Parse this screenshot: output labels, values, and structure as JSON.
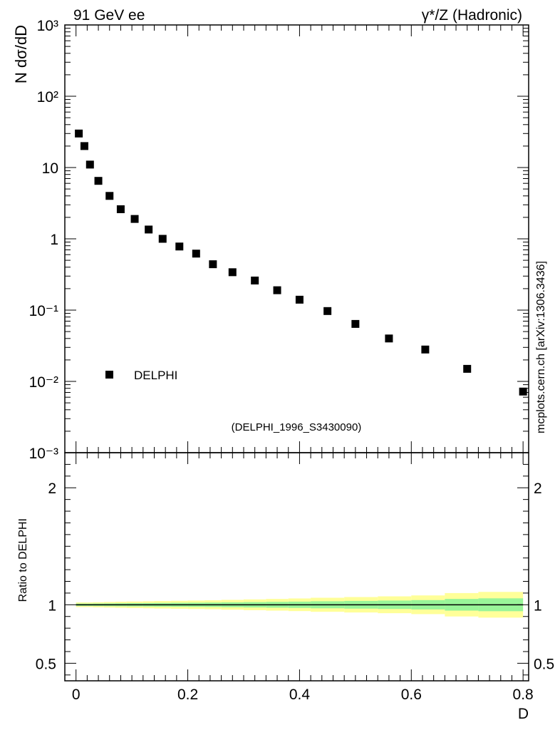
{
  "header": {
    "left": "91 GeV ee",
    "right": "γ*/Z (Hadronic)"
  },
  "side_label": "mcplots.cern.ch [arXiv:1306.3436]",
  "chart_data": [
    {
      "type": "scatter",
      "panel": "main",
      "ylabel": "N dσ/dD",
      "xlabel": "",
      "yscale": "log",
      "xlim": [
        -0.02,
        0.81
      ],
      "ylim": [
        0.001,
        1000
      ],
      "ytick_labels": [
        "10³",
        "10²",
        "10",
        "1",
        "10⁻¹",
        "10⁻²",
        "10⁻³"
      ],
      "legend": {
        "position": "bottom-left",
        "entries": [
          "DELPHI"
        ]
      },
      "annotation": "(DELPHI_1996_S3430090)",
      "series": [
        {
          "name": "DELPHI",
          "marker": "square",
          "color": "#000000",
          "x": [
            0.005,
            0.015,
            0.025,
            0.04,
            0.06,
            0.08,
            0.105,
            0.13,
            0.155,
            0.185,
            0.215,
            0.245,
            0.28,
            0.32,
            0.36,
            0.4,
            0.45,
            0.5,
            0.56,
            0.625,
            0.7,
            0.8
          ],
          "y": [
            30,
            20,
            11,
            6.5,
            4.0,
            2.6,
            1.9,
            1.35,
            1.0,
            0.78,
            0.62,
            0.44,
            0.34,
            0.26,
            0.19,
            0.14,
            0.097,
            0.064,
            0.04,
            0.028,
            0.015,
            0.0072
          ]
        }
      ]
    },
    {
      "type": "band",
      "panel": "ratio",
      "ylabel": "Ratio to DELPHI",
      "xlabel": "D",
      "xlim": [
        -0.02,
        0.81
      ],
      "ylim": [
        0.35,
        2.3
      ],
      "x_tick_labels": [
        "0",
        "0.2",
        "0.4",
        "0.6",
        "0.8"
      ],
      "y_tick_labels": [
        "0.5",
        "1",
        "2"
      ],
      "reference_line": 1,
      "colors": {
        "inner": "#99f599",
        "outer": "#ffff99",
        "line": "#000000"
      },
      "bins": [
        {
          "x0": 0.0,
          "x1": 0.01,
          "inner": 0.01,
          "outer": 0.02
        },
        {
          "x0": 0.01,
          "x1": 0.02,
          "inner": 0.01,
          "outer": 0.02
        },
        {
          "x0": 0.02,
          "x1": 0.03,
          "inner": 0.01,
          "outer": 0.02
        },
        {
          "x0": 0.03,
          "x1": 0.05,
          "inner": 0.011,
          "outer": 0.022
        },
        {
          "x0": 0.05,
          "x1": 0.07,
          "inner": 0.012,
          "outer": 0.024
        },
        {
          "x0": 0.07,
          "x1": 0.09,
          "inner": 0.013,
          "outer": 0.026
        },
        {
          "x0": 0.09,
          "x1": 0.12,
          "inner": 0.014,
          "outer": 0.028
        },
        {
          "x0": 0.12,
          "x1": 0.14,
          "inner": 0.015,
          "outer": 0.03
        },
        {
          "x0": 0.14,
          "x1": 0.17,
          "inner": 0.016,
          "outer": 0.032
        },
        {
          "x0": 0.17,
          "x1": 0.2,
          "inner": 0.017,
          "outer": 0.034
        },
        {
          "x0": 0.2,
          "x1": 0.23,
          "inner": 0.018,
          "outer": 0.036
        },
        {
          "x0": 0.23,
          "x1": 0.26,
          "inner": 0.019,
          "outer": 0.038
        },
        {
          "x0": 0.26,
          "x1": 0.3,
          "inner": 0.021,
          "outer": 0.042
        },
        {
          "x0": 0.3,
          "x1": 0.34,
          "inner": 0.023,
          "outer": 0.046
        },
        {
          "x0": 0.34,
          "x1": 0.38,
          "inner": 0.025,
          "outer": 0.05
        },
        {
          "x0": 0.38,
          "x1": 0.42,
          "inner": 0.027,
          "outer": 0.054
        },
        {
          "x0": 0.42,
          "x1": 0.48,
          "inner": 0.03,
          "outer": 0.06
        },
        {
          "x0": 0.48,
          "x1": 0.54,
          "inner": 0.033,
          "outer": 0.066
        },
        {
          "x0": 0.54,
          "x1": 0.6,
          "inner": 0.036,
          "outer": 0.072
        },
        {
          "x0": 0.6,
          "x1": 0.66,
          "inner": 0.04,
          "outer": 0.08
        },
        {
          "x0": 0.66,
          "x1": 0.72,
          "inner": 0.05,
          "outer": 0.1
        },
        {
          "x0": 0.72,
          "x1": 0.8,
          "inner": 0.055,
          "outer": 0.11
        }
      ]
    }
  ]
}
